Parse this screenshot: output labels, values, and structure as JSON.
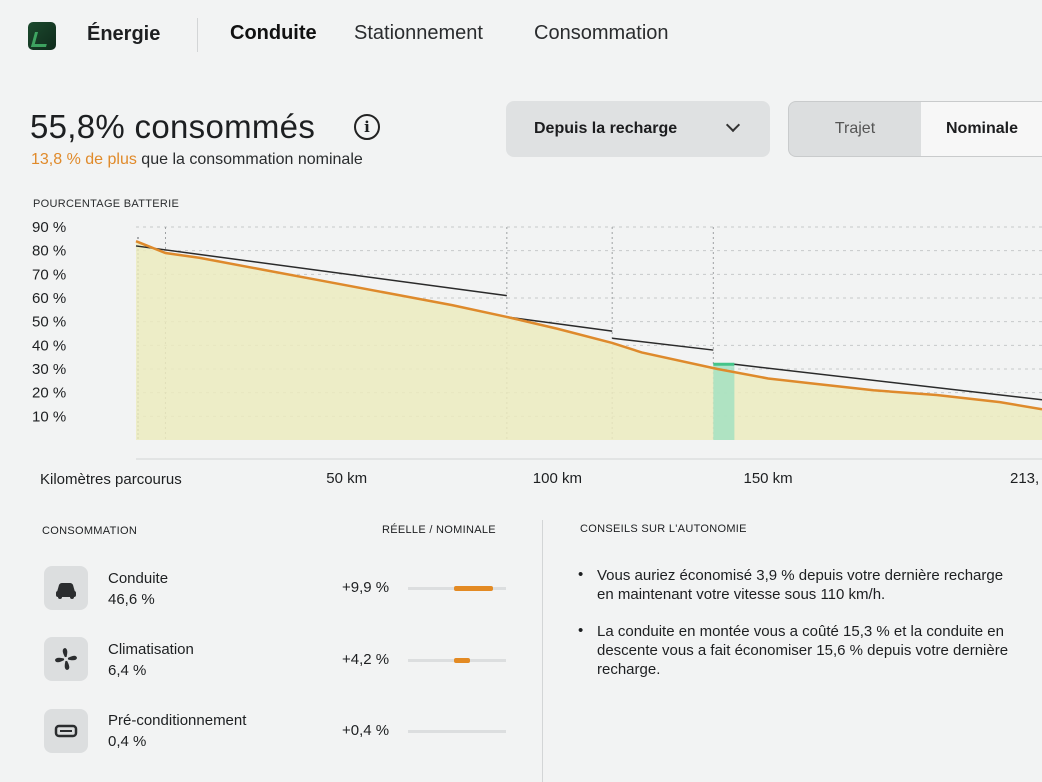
{
  "nav": {
    "app_title": "Énergie",
    "tabs": [
      "Conduite",
      "Stationnement",
      "Consommation"
    ],
    "active_tab": "Conduite"
  },
  "header": {
    "title": "55,8% consommés",
    "info_icon": "info-circle-icon",
    "subtitle_accent": "13,8 % de plus",
    "subtitle_rest": " que la consommation nominale",
    "dropdown_value": "Depuis la recharge",
    "toggle": [
      "Trajet",
      "Nominale"
    ],
    "toggle_selected": "Nominale"
  },
  "chart_data": {
    "type": "line",
    "title": "POURCENTAGE BATTERIE",
    "xlabel": "Kilomètres parcourus",
    "x_tick_labels": [
      "50 km",
      "100 km",
      "150 km",
      "213,"
    ],
    "x_ticks_km": [
      50,
      100,
      150,
      213
    ],
    "y_tick_labels": [
      "90 %",
      "80 %",
      "70 %",
      "60 %",
      "50 %",
      "40 %",
      "30 %",
      "20 %",
      "10 %"
    ],
    "y_ticks": [
      90,
      80,
      70,
      60,
      50,
      40,
      30,
      20,
      10
    ],
    "xlim": [
      0,
      215
    ],
    "ylim": [
      0,
      90
    ],
    "grid": true,
    "colors": {
      "real": "#de8a2c",
      "nominal": "#2a2a2a",
      "fill": "#ecebbe",
      "charge": "#45c48a"
    },
    "series": [
      {
        "key": "real",
        "points": [
          [
            0,
            84
          ],
          [
            7,
            79
          ],
          [
            15,
            77
          ],
          [
            30,
            72
          ],
          [
            45,
            67
          ],
          [
            60,
            62
          ],
          [
            75,
            57
          ],
          [
            88,
            52
          ],
          [
            100,
            47
          ],
          [
            113,
            41
          ],
          [
            120,
            37
          ],
          [
            138,
            30
          ],
          [
            150,
            26
          ],
          [
            160,
            24
          ],
          [
            175,
            21
          ],
          [
            190,
            19
          ],
          [
            205,
            16
          ],
          [
            215,
            13
          ]
        ]
      },
      {
        "key": "nominal",
        "segments": [
          [
            [
              0,
              82
            ],
            [
              88,
              61
            ]
          ],
          [
            [
              88,
              52
            ],
            [
              113,
              46
            ]
          ],
          [
            [
              113,
              43
            ],
            [
              137,
              38
            ]
          ],
          [
            [
              142,
              32
            ],
            [
              215,
              17
            ]
          ]
        ]
      }
    ],
    "charge_event": {
      "x_start": 137,
      "x_end": 142,
      "from": 30,
      "to": 32
    },
    "markers_km": [
      7,
      88,
      113,
      137
    ]
  },
  "consumption": {
    "heading": "CONSOMMATION",
    "col_heading": "RÉELLE / NOMINALE",
    "rows": [
      {
        "icon": "car-icon",
        "name": "Conduite",
        "pct": "46,6 %",
        "delta": "+9,9 %",
        "bar_fraction": 0.4
      },
      {
        "icon": "fan-icon",
        "name": "Climatisation",
        "pct": "6,4 %",
        "delta": "+4,2 %",
        "bar_fraction": 0.16
      },
      {
        "icon": "battery-icon",
        "name": "Pré-conditionnement",
        "pct": "0,4 %",
        "delta": "+0,4 %",
        "bar_fraction": 0.0
      }
    ]
  },
  "tips": {
    "heading": "CONSEILS SUR L'AUTONOMIE",
    "items": [
      "Vous auriez économisé 3,9 % depuis votre dernière recharge en maintenant votre vitesse sous 110 km/h.",
      "La conduite en montée vous a coûté 15,3 % et la conduite en descente vous a fait économiser 15,6 % depuis votre dernière recharge."
    ]
  }
}
